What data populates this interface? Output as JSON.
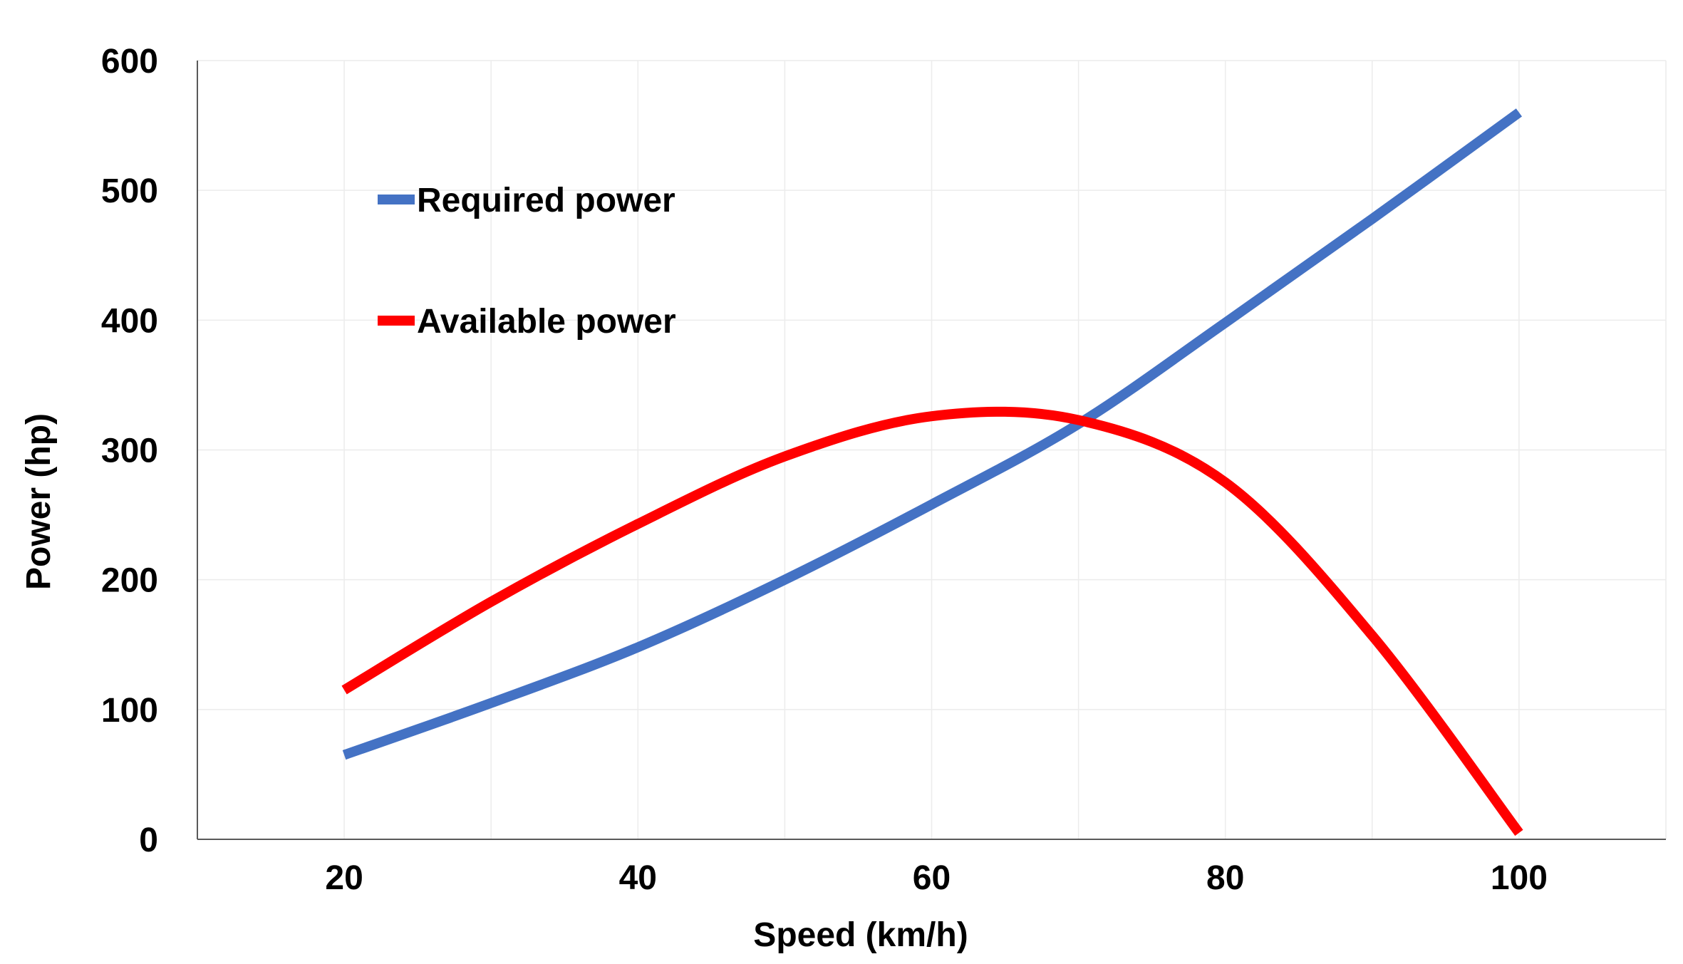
{
  "chart_data": {
    "type": "line",
    "title": "",
    "xlabel": "Speed (km/h)",
    "ylabel": "Power (hp)",
    "xlim": [
      10,
      110
    ],
    "ylim": [
      0,
      600
    ],
    "x_ticks": [
      20,
      40,
      60,
      80,
      100
    ],
    "x_tick_labels": [
      "20",
      "40",
      "60",
      "80",
      "100"
    ],
    "y_ticks": [
      0,
      100,
      200,
      300,
      400,
      500,
      600
    ],
    "y_tick_labels": [
      "0",
      "100",
      "200",
      "300",
      "400",
      "500",
      "600"
    ],
    "grid": true,
    "legend_position": "top-left",
    "series": [
      {
        "name": "Required power",
        "color": "#4472C4",
        "x": [
          20,
          30,
          40,
          50,
          60,
          70,
          80,
          90,
          100
        ],
        "values": [
          65,
          105,
          148,
          200,
          258,
          320,
          398,
          478,
          560
        ]
      },
      {
        "name": "Available power",
        "color": "#FF0000",
        "x": [
          20,
          30,
          40,
          50,
          60,
          70,
          80,
          90,
          100
        ],
        "values": [
          115,
          183,
          243,
          295,
          326,
          323,
          275,
          157,
          5
        ]
      }
    ]
  }
}
